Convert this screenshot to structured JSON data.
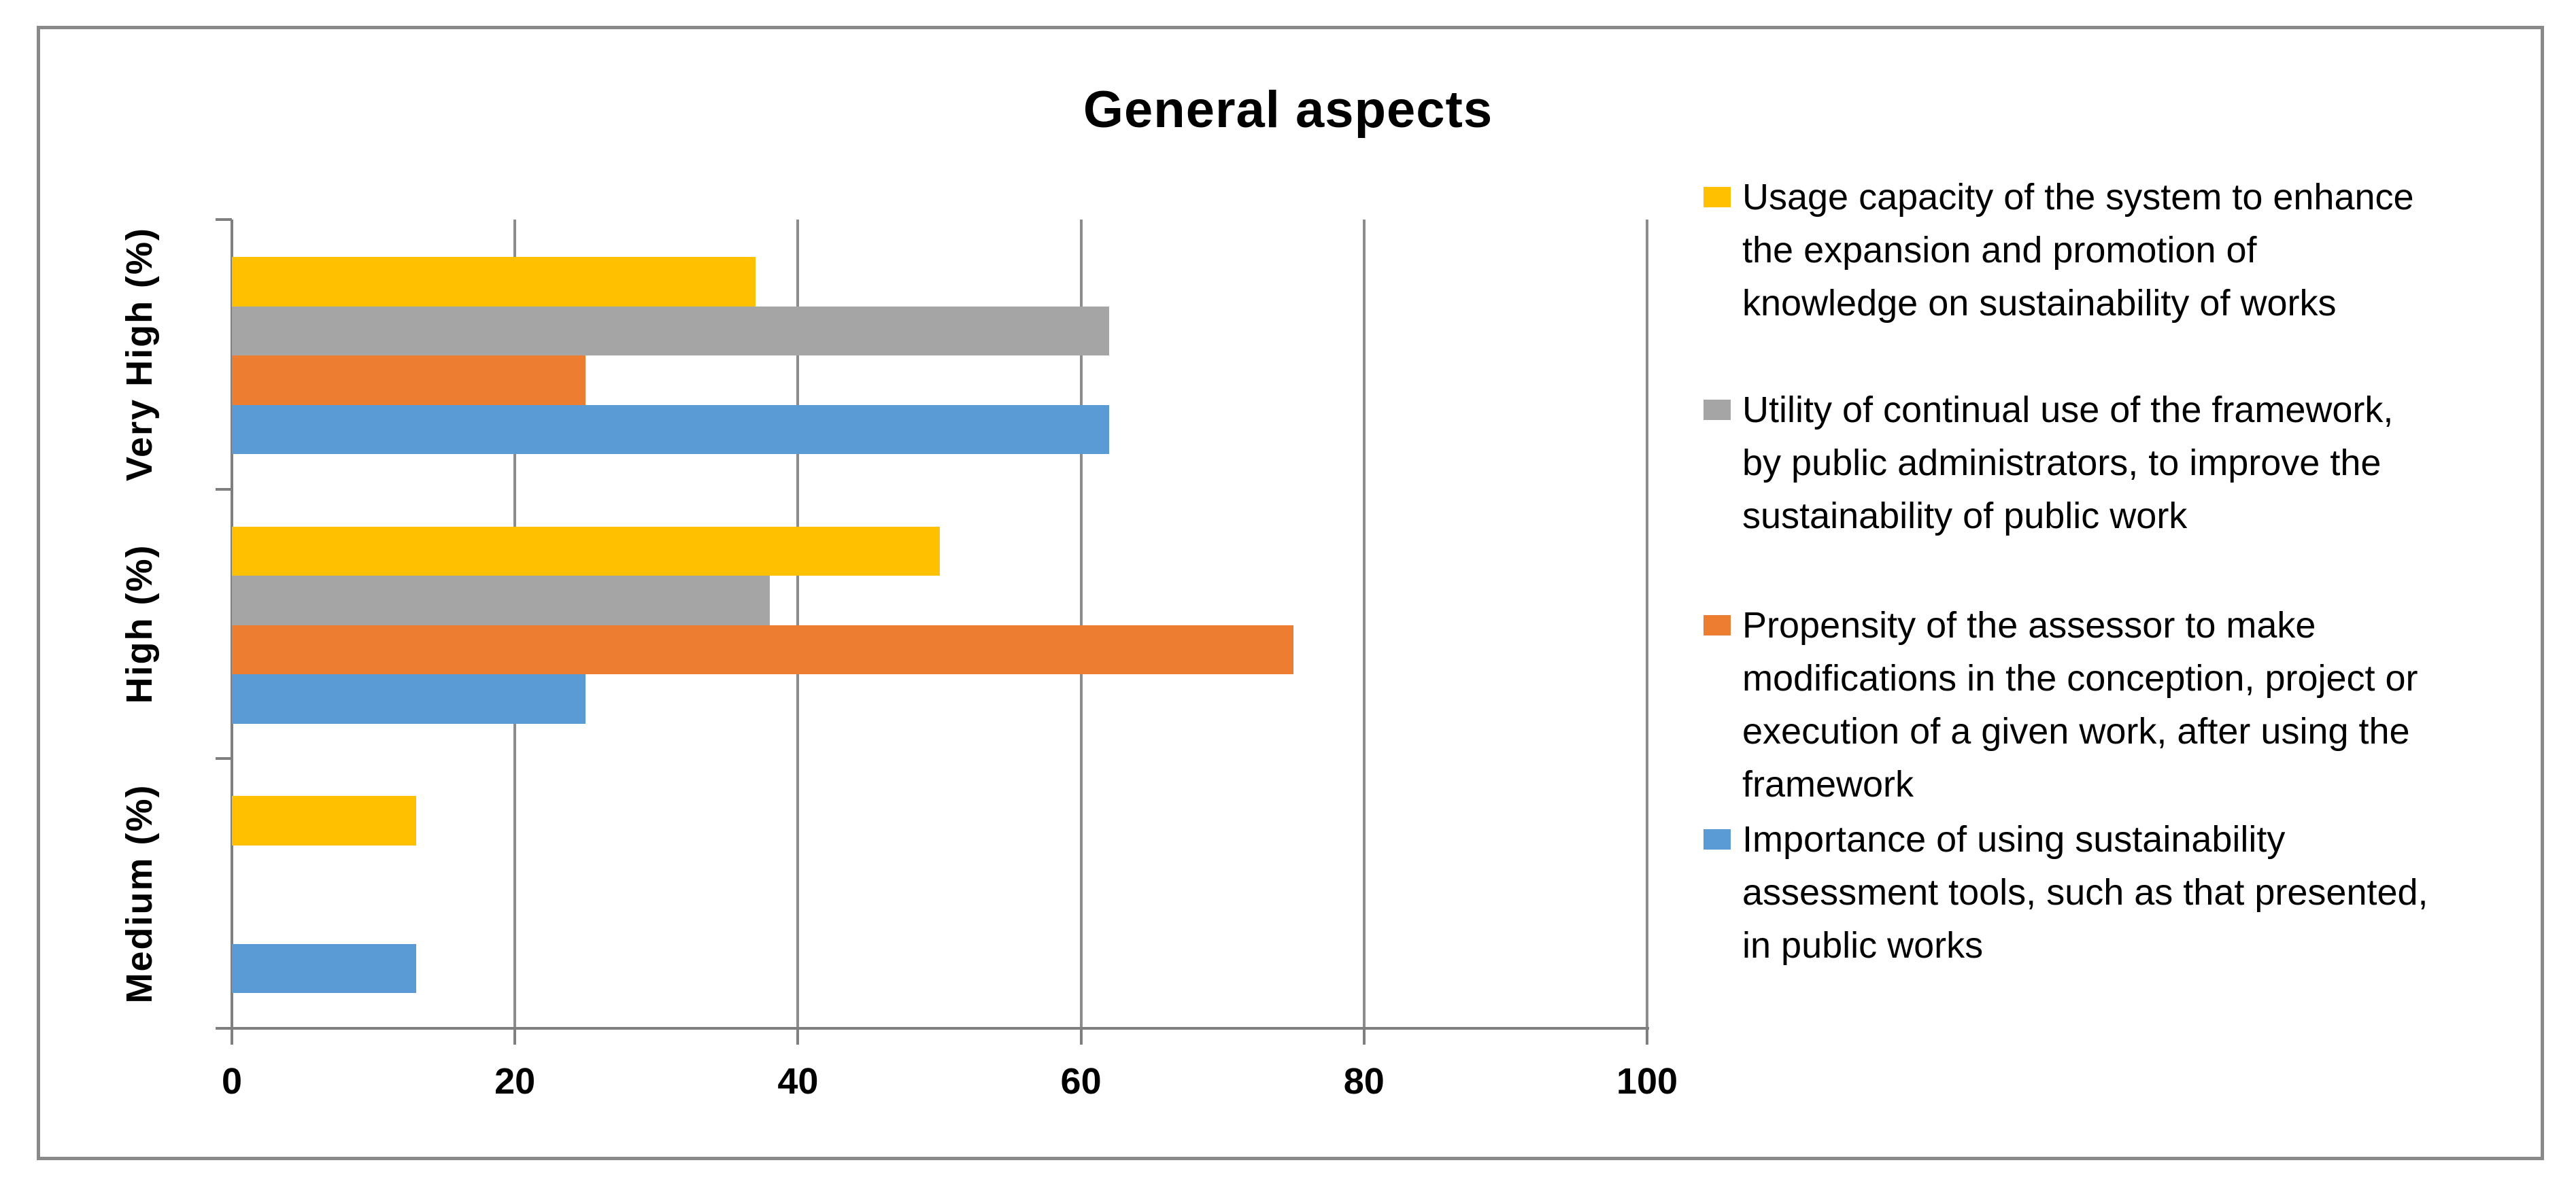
{
  "chart_data": {
    "type": "bar",
    "orientation": "horizontal",
    "title": "General aspects",
    "categories": [
      "Very High (%)",
      "High (%)",
      "Medium (%)"
    ],
    "series": [
      {
        "name": "Usage capacity of the system to enhance\nthe expansion and promotion of\nknowledge on sustainability of works",
        "color": "#FFC000",
        "values": [
          37,
          50,
          13
        ]
      },
      {
        "name": "Utility of continual use of the framework,\nby public administrators, to improve the\nsustainability of public work",
        "color": "#A5A5A5",
        "values": [
          62,
          38,
          0
        ]
      },
      {
        "name": "Propensity of the assessor to make\nmodifications in the conception, project or\nexecution of a given work, after using the\nframework",
        "color": "#ED7D31",
        "values": [
          25,
          75,
          0
        ]
      },
      {
        "name": "Importance of using sustainability\nassessment tools, such as that presented,\nin public works",
        "color": "#5B9BD5",
        "values": [
          62,
          25,
          13
        ]
      }
    ],
    "x_ticks": [
      "0",
      "20",
      "40",
      "60",
      "80",
      "100"
    ],
    "xlim": [
      0,
      100
    ],
    "legend_position": "right",
    "gridlines": "vertical",
    "gridline_color": "#8c8c8c",
    "axis_color": "#7f7f7f",
    "border_color": "#898989",
    "text_color": "#000000",
    "background_color": "#ffffff"
  }
}
